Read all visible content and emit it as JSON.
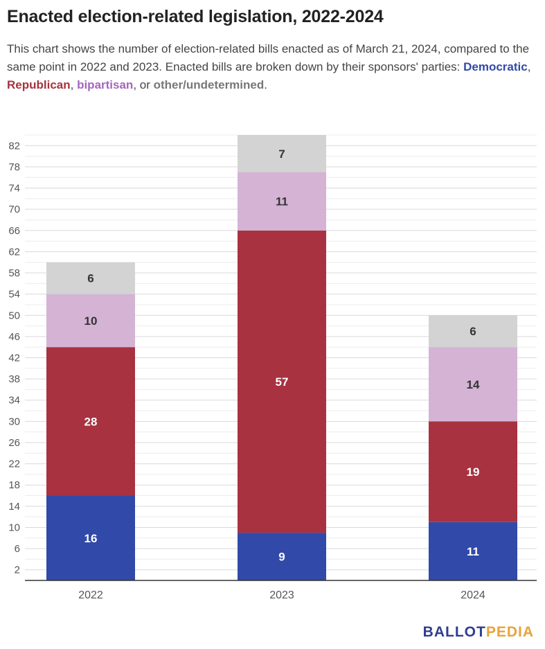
{
  "title": "Enacted election-related legislation, 2022-2024",
  "subtitle": {
    "text": "This chart shows the number of election-related bills enacted as of March 21, 2024, compared to the same point in 2022 and 2023. Enacted bills are broken down by their sponsors' parties: ",
    "democratic": "Democratic",
    "sep1": ", ",
    "republican": "Republican",
    "sep2": ", ",
    "bipartisan": "bipartisan",
    "sep3": ", or ",
    "other": "other/undetermined",
    "end": "."
  },
  "colors": {
    "democratic": "#3149a8",
    "republican": "#a83240",
    "bipartisan": "#d4b3d5",
    "other": "#d3d3d3",
    "bipartisan_text": "#a565c0",
    "other_text": "#777777"
  },
  "logo": {
    "part1": "BALLOT",
    "part2": "PEDIA"
  },
  "chart_data": {
    "type": "bar",
    "stacked": true,
    "categories": [
      "2022",
      "2023",
      "2024"
    ],
    "series": [
      {
        "name": "Democratic",
        "values": [
          16,
          9,
          11
        ]
      },
      {
        "name": "Republican",
        "values": [
          28,
          57,
          19
        ]
      },
      {
        "name": "bipartisan",
        "values": [
          10,
          11,
          14
        ]
      },
      {
        "name": "other/undetermined",
        "values": [
          6,
          7,
          6
        ]
      }
    ],
    "yticks": [
      2,
      6,
      10,
      14,
      18,
      22,
      26,
      30,
      34,
      38,
      42,
      46,
      50,
      54,
      58,
      62,
      66,
      70,
      74,
      78,
      82
    ],
    "ylim": [
      0,
      84
    ],
    "grid": true,
    "legend": "in subtitle"
  }
}
